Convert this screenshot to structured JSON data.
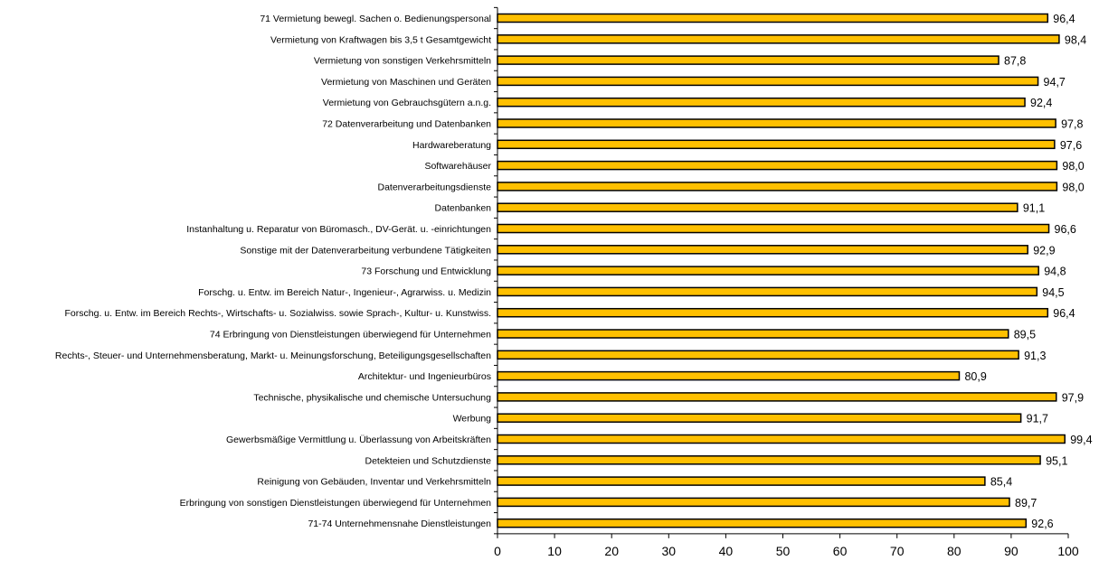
{
  "chart_data": {
    "type": "bar",
    "orientation": "horizontal",
    "title": "",
    "xlabel": "",
    "ylabel": "",
    "xlim": [
      0,
      100
    ],
    "x_ticks": [
      0,
      10,
      20,
      30,
      40,
      50,
      60,
      70,
      80,
      90,
      100
    ],
    "grid": false,
    "legend": "none",
    "bar_color": "#FFC000",
    "bar_edge_color": "#000000",
    "categories": [
      "71 Vermietung bewegl. Sachen o. Bedienungspersonal",
      "Vermietung von Kraftwagen bis 3,5 t Gesamtgewicht",
      "Vermietung von sonstigen Verkehrsmitteln",
      "Vermietung von Maschinen und Geräten",
      "Vermietung von Gebrauchsgütern a.n.g.",
      "72 Datenverarbeitung und Datenbanken",
      "Hardwareberatung",
      "Softwarehäuser",
      "Datenverarbeitungsdienste",
      "Datenbanken",
      "Instanhaltung u. Reparatur von Büromasch., DV-Gerät. u. -einrichtungen",
      "Sonstige mit der Datenverarbeitung verbundene Tätigkeiten",
      "73 Forschung und Entwicklung",
      "Forschg. u. Entw. im Bereich Natur-, Ingenieur-, Agrarwiss. u. Medizin",
      "Forschg. u. Entw. im Bereich Rechts-, Wirtschafts- u. Sozialwiss. sowie Sprach-, Kultur- u. Kunstwiss.",
      "74 Erbringung von Dienstleistungen überwiegend für Unternehmen",
      "Rechts-, Steuer- und Unternehmensberatung, Markt- u. Meinungsforschung, Beteiligungsgesellschaften",
      "Architektur- und Ingenieurbüros",
      "Technische, physikalische und chemische Untersuchung",
      "Werbung",
      "Gewerbsmäßige Vermittlung u. Überlassung von Arbeitskräften",
      "Detekteien und Schutzdienste",
      "Reinigung von Gebäuden, Inventar und Verkehrsmitteln",
      "Erbringung von sonstigen Dienstleistungen überwiegend für Unternehmen",
      "71-74 Unternehmensnahe Dienstleistungen"
    ],
    "values": [
      96.4,
      98.4,
      87.8,
      94.7,
      92.4,
      97.8,
      97.6,
      98.0,
      98.0,
      91.1,
      96.6,
      92.9,
      94.8,
      94.5,
      96.4,
      89.5,
      91.3,
      80.9,
      97.9,
      91.7,
      99.4,
      95.1,
      85.4,
      89.7,
      92.6
    ],
    "value_labels": [
      "96,4",
      "98,4",
      "87,8",
      "94,7",
      "92,4",
      "97,8",
      "97,6",
      "98,0",
      "98,0",
      "91,1",
      "96,6",
      "92,9",
      "94,8",
      "94,5",
      "96,4",
      "89,5",
      "91,3",
      "80,9",
      "97,9",
      "91,7",
      "99,4",
      "95,1",
      "85,4",
      "89,7",
      "92,6"
    ]
  }
}
